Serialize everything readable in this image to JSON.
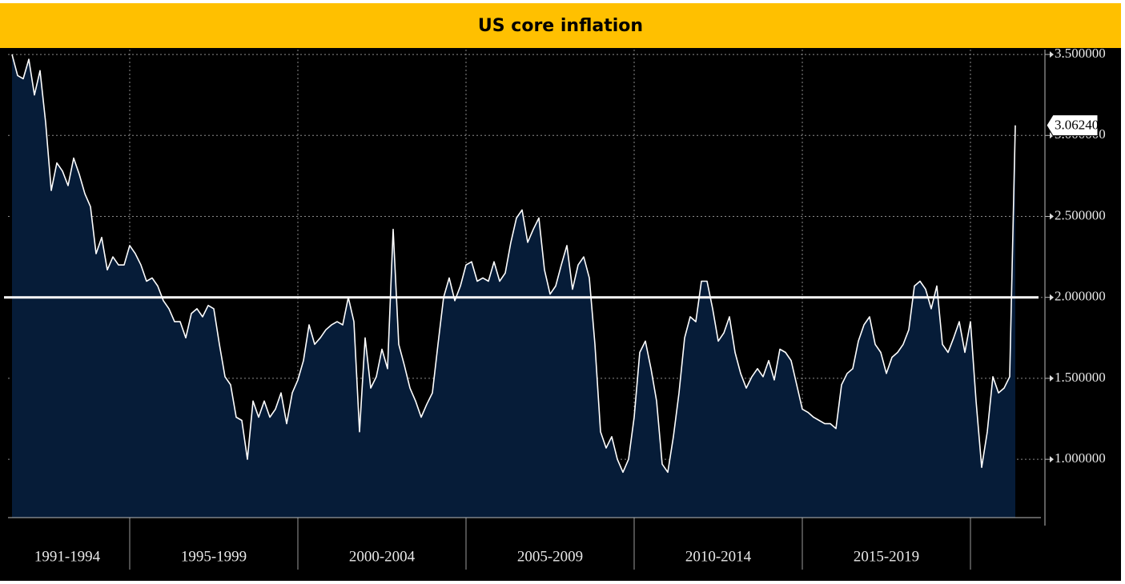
{
  "chart_data": {
    "type": "line",
    "title": "US core inflation",
    "periods": [
      "1991-1994",
      "1995-1999",
      "2000-2004",
      "2005-2009",
      "2010-2014",
      "2015-2019"
    ],
    "series": [
      {
        "name": "US core inflation",
        "color": "#ffffff",
        "fill": "#061c38",
        "values": [
          null,
          null,
          null,
          3.5,
          3.37,
          3.35,
          3.47,
          3.25,
          3.4,
          3.08,
          2.66,
          2.83,
          2.78,
          2.69,
          2.86,
          2.76,
          2.64,
          2.56,
          2.27,
          2.37,
          2.17,
          2.25,
          2.2,
          2.2,
          2.32,
          2.27,
          2.2,
          2.1,
          2.12,
          2.07,
          1.98,
          1.93,
          1.85,
          1.85,
          1.75,
          1.9,
          1.93,
          1.88,
          1.95,
          1.93,
          1.71,
          1.51,
          1.46,
          1.26,
          1.24,
          1.0,
          1.36,
          1.26,
          1.36,
          1.26,
          1.31,
          1.41,
          1.22,
          1.41,
          1.49,
          1.61,
          1.83,
          1.71,
          1.75,
          1.8,
          1.83,
          1.85,
          1.83,
          2.0,
          1.85,
          1.17,
          1.75,
          1.44,
          1.51,
          1.68,
          1.56,
          2.42,
          1.71,
          1.58,
          1.44,
          1.36,
          1.26,
          1.34,
          1.41,
          1.71,
          2.0,
          2.12,
          1.98,
          2.07,
          2.2,
          2.22,
          2.1,
          2.12,
          2.1,
          2.22,
          2.1,
          2.15,
          2.34,
          2.49,
          2.54,
          2.34,
          2.42,
          2.49,
          2.17,
          2.02,
          2.07,
          2.2,
          2.32,
          2.05,
          2.2,
          2.25,
          2.12,
          1.71,
          1.17,
          1.07,
          1.14,
          1.0,
          0.92,
          1.0,
          1.26,
          1.66,
          1.73,
          1.56,
          1.36,
          0.97,
          0.92,
          1.14,
          1.41,
          1.75,
          1.88,
          1.85,
          2.1,
          2.1,
          1.93,
          1.73,
          1.78,
          1.88,
          1.66,
          1.53,
          1.44,
          1.51,
          1.56,
          1.51,
          1.61,
          1.49,
          1.68,
          1.66,
          1.61,
          1.46,
          1.31,
          1.29,
          1.26,
          1.24,
          1.22,
          1.22,
          1.19,
          1.46,
          1.53,
          1.56,
          1.73,
          1.83,
          1.88,
          1.71,
          1.66,
          1.53,
          1.63,
          1.66,
          1.71,
          1.8,
          2.07,
          2.1,
          2.05,
          1.93,
          2.07,
          1.71,
          1.66,
          1.75,
          1.85,
          1.66,
          1.85,
          1.36,
          0.95,
          1.17,
          1.51,
          1.41,
          1.44,
          1.51,
          3.0624
        ]
      }
    ],
    "end_label": "3.062400",
    "reference_line": 2,
    "ylim": [
      0.64,
      3.53
    ],
    "yticks": [
      {
        "value": 1,
        "label": "1.000000"
      },
      {
        "value": 1.5,
        "label": "1.500000"
      },
      {
        "value": 2,
        "label": "2.000000"
      },
      {
        "value": 2.5,
        "label": "2.500000"
      },
      {
        "value": 3,
        "label": "3.000000"
      },
      {
        "value": 3.5,
        "label": "3.500000"
      }
    ],
    "grid": true
  }
}
